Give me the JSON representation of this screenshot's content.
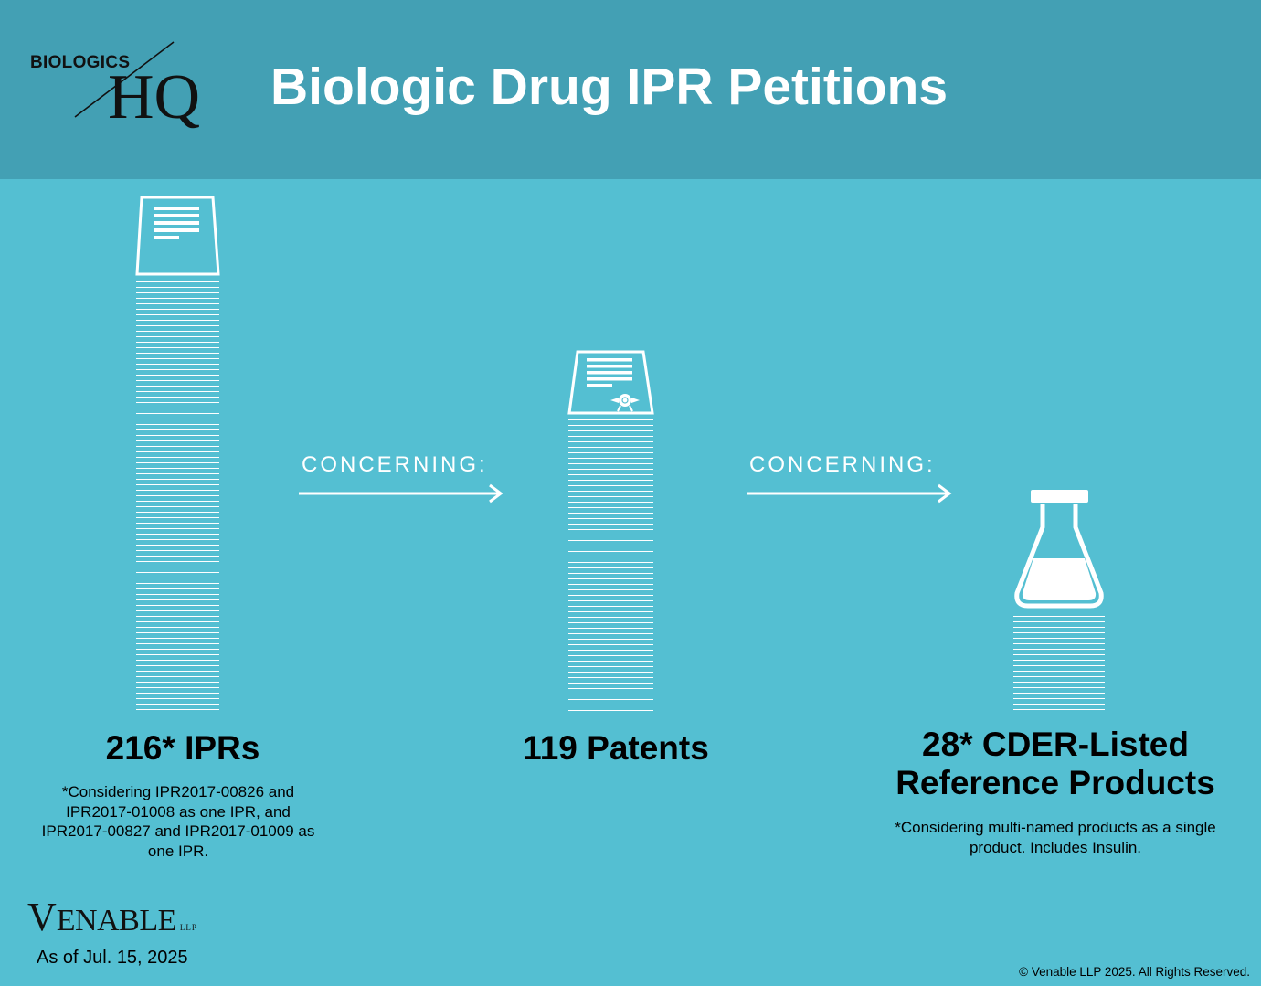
{
  "logo": {
    "small_text": "BIOLOGICS",
    "big_text": "HQ"
  },
  "title": "Biologic Drug IPR Petitions",
  "connectors": [
    {
      "label": "CONCERNING:"
    },
    {
      "label": "CONCERNING:"
    }
  ],
  "stats": [
    {
      "label": "216* IPRs",
      "value": 216,
      "icon": "document-icon",
      "note": "*Considering IPR2017-00826 and IPR2017-01008 as one IPR, and IPR2017-00827 and IPR2017-01009 as one IPR."
    },
    {
      "label": "119 Patents",
      "value": 119,
      "icon": "patent-certificate-icon",
      "note": ""
    },
    {
      "label_line1": "28* CDER-Listed",
      "label_line2": "Reference Products",
      "value": 28,
      "icon": "flask-icon",
      "note": "*Considering multi-named products as a single product.  Includes Insulin."
    }
  ],
  "footer": {
    "brand_v": "V",
    "brand_rest": "ENABLE",
    "brand_llp": "LLP",
    "as_of": "As of Jul. 15, 2025",
    "copyright": "© Venable LLP 2025. All Rights Reserved."
  },
  "colors": {
    "header": "#43a0b4",
    "background": "#54bfd2",
    "accent": "#ffffff"
  }
}
